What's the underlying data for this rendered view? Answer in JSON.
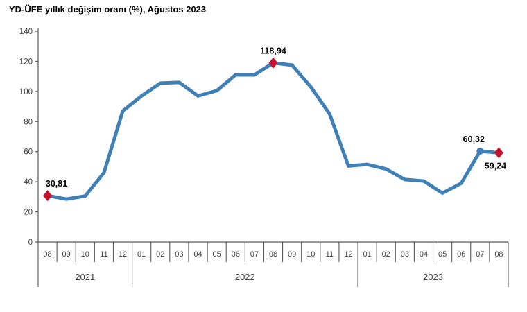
{
  "title": "YD-ÜFE yıllık değişim oranı (%), Ağustos 2023",
  "colors": {
    "line": "#3F80B6",
    "marker": "#C8102E",
    "axis": "#595959",
    "tick_text": "#404040",
    "label_text": "#000000"
  },
  "chart_data": {
    "type": "line",
    "title": "YD-ÜFE yıllık değişim oranı (%), Ağustos 2023",
    "x": [
      "08",
      "09",
      "10",
      "11",
      "12",
      "01",
      "02",
      "03",
      "04",
      "05",
      "06",
      "07",
      "08",
      "09",
      "10",
      "11",
      "12",
      "01",
      "02",
      "03",
      "04",
      "05",
      "06",
      "07",
      "08"
    ],
    "year_groups": [
      {
        "label": "2021",
        "count": 5
      },
      {
        "label": "2022",
        "count": 12
      },
      {
        "label": "2023",
        "count": 8
      }
    ],
    "values": [
      30.81,
      28.5,
      30.5,
      46.0,
      87.0,
      97.0,
      105.5,
      106.0,
      97.0,
      100.5,
      111.0,
      111.0,
      118.94,
      117.5,
      103.0,
      85.0,
      50.5,
      51.5,
      48.5,
      41.5,
      40.5,
      32.5,
      39.0,
      60.32,
      59.24
    ],
    "ylim": [
      0,
      140
    ],
    "ytick_step": 20,
    "grid": false,
    "legend": "none",
    "annotations": [
      {
        "index": 0,
        "label": "30,81",
        "marker": "diamond",
        "label_pos": "above",
        "dx": 13
      },
      {
        "index": 12,
        "label": "118,94",
        "marker": "diamond",
        "label_pos": "above",
        "dx": 0
      },
      {
        "index": 23,
        "label": "60,32",
        "marker": "dot",
        "label_pos": "above",
        "dx": -9
      },
      {
        "index": 24,
        "label": "59,24",
        "marker": "diamond",
        "label_pos": "below",
        "dx": -5
      }
    ]
  }
}
